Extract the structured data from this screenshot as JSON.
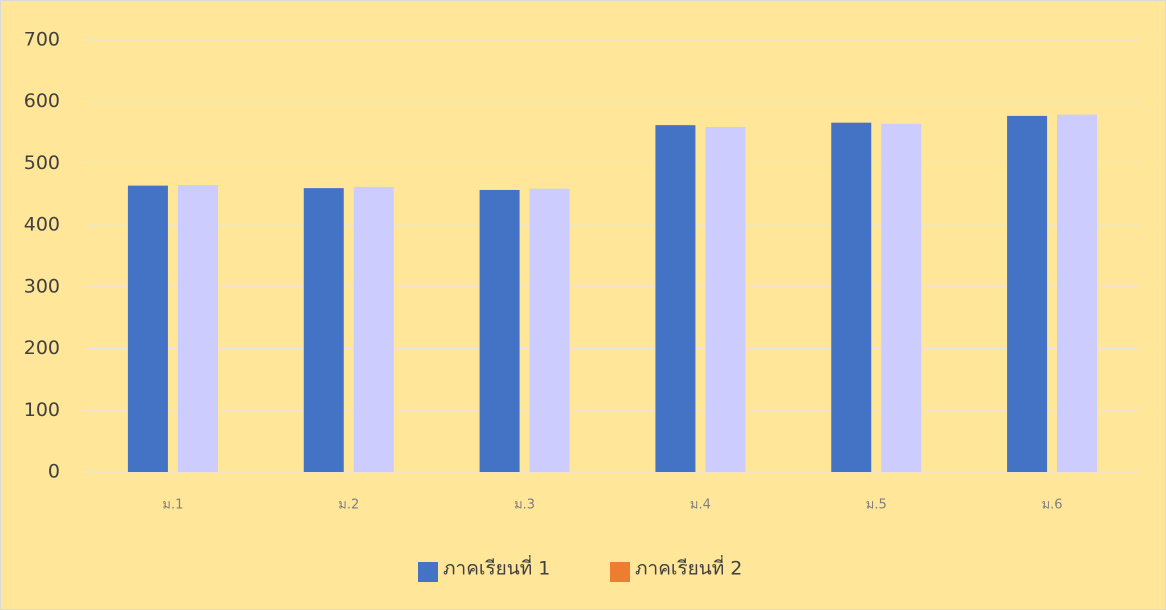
{
  "chart_data": {
    "type": "bar",
    "categories": [
      "ม.1",
      "ม.2",
      "ม.3",
      "ม.4",
      "ม.5",
      "ม.6"
    ],
    "series": [
      {
        "name": "ภาคเรียนที่ 1",
        "color": "#4472C4",
        "values": [
          464,
          460,
          457,
          562,
          566,
          577
        ]
      },
      {
        "name": "ภาคเรียนที่ 2",
        "color": "#CCCCFF",
        "legend_color": "#ED7D31",
        "values": [
          465,
          462,
          459,
          559,
          564,
          579
        ]
      }
    ],
    "ylim": [
      0,
      700
    ],
    "yticks": [
      0,
      100,
      200,
      300,
      400,
      500,
      600,
      700
    ],
    "grid": true,
    "legend": "bottom"
  }
}
